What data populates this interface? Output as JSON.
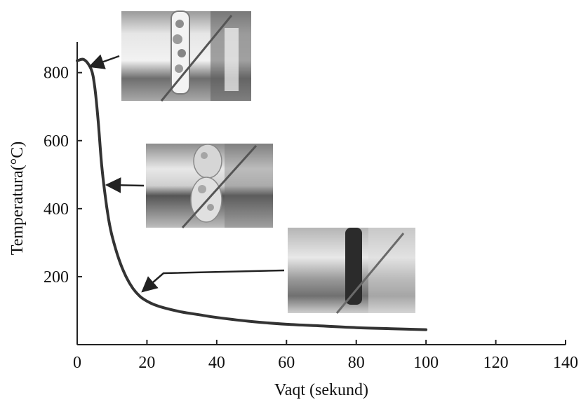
{
  "chart_data": {
    "type": "line",
    "xlabel": "Vaqt (sekund)",
    "ylabel": "Temperatura(°C)",
    "xlim": [
      0,
      140
    ],
    "ylim": [
      0,
      890
    ],
    "x_ticks": [
      0,
      20,
      40,
      60,
      80,
      100,
      120,
      140
    ],
    "y_ticks": [
      200,
      400,
      600,
      800
    ],
    "grid": false,
    "line_color": "#333333",
    "series": [
      {
        "x": [
          0,
          2,
          4,
          5,
          6,
          7,
          8,
          9,
          10,
          12,
          14,
          16,
          18,
          20,
          22,
          25,
          30,
          35,
          40,
          50,
          60,
          70,
          80,
          90,
          100
        ],
        "y": [
          835,
          838,
          810,
          760,
          660,
          530,
          440,
          370,
          320,
          250,
          200,
          165,
          142,
          128,
          118,
          108,
          96,
          88,
          80,
          68,
          60,
          55,
          50,
          47,
          44
        ]
      }
    ],
    "annotations": [
      {
        "target": [
          3,
          820
        ],
        "image": "hot-rod-photo"
      },
      {
        "target": [
          8.5,
          440
        ],
        "image": "boiling-rod-photo"
      },
      {
        "target": [
          19,
          140
        ],
        "image": "cooled-rod-photo"
      }
    ]
  }
}
